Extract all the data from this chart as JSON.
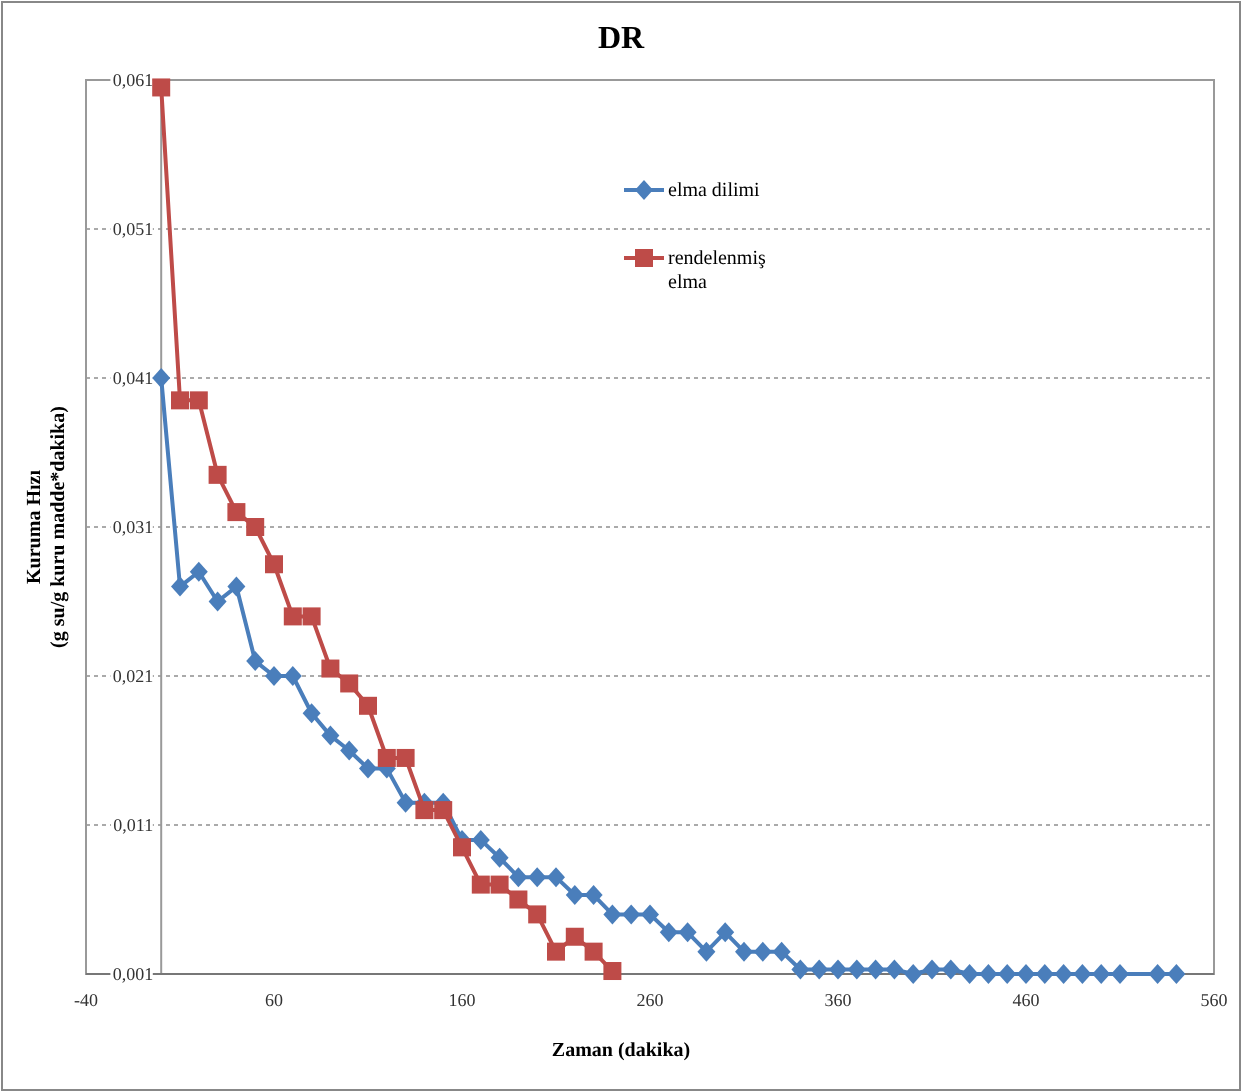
{
  "chart_data": {
    "type": "line",
    "title": "DR",
    "xlabel": "Zaman (dakika)",
    "ylabel": "Kuruma Hızı\n(g su/g kuru madde*dakika)",
    "xlim": [
      -40,
      560
    ],
    "xticks": [
      -40,
      60,
      160,
      260,
      360,
      460,
      560
    ],
    "ylim": [
      0.001,
      0.061
    ],
    "yticks": [
      {
        "value": 0.001,
        "label": "0,001"
      },
      {
        "value": 0.011,
        "label": "0,011"
      },
      {
        "value": 0.021,
        "label": "0,021"
      },
      {
        "value": 0.031,
        "label": "0,031"
      },
      {
        "value": 0.041,
        "label": "0,041"
      },
      {
        "value": 0.051,
        "label": "0,051"
      },
      {
        "value": 0.061,
        "label": "0,061"
      }
    ],
    "grid": "y",
    "legend": "top right",
    "series": [
      {
        "name": "elma dilimi",
        "color": "#4a7ebb",
        "marker": "diamond",
        "x": [
          0,
          10,
          20,
          30,
          40,
          50,
          60,
          70,
          80,
          90,
          100,
          110,
          120,
          130,
          140,
          150,
          160,
          170,
          180,
          190,
          200,
          210,
          220,
          230,
          240,
          250,
          260,
          270,
          280,
          290,
          300,
          310,
          320,
          330,
          340,
          350,
          360,
          370,
          380,
          390,
          400,
          410,
          420,
          430,
          440,
          450,
          460,
          470,
          480,
          490,
          500,
          510,
          530,
          540
        ],
        "values": [
          0.041,
          0.027,
          0.028,
          0.026,
          0.027,
          0.022,
          0.021,
          0.021,
          0.0185,
          0.017,
          0.016,
          0.0148,
          0.0148,
          0.0125,
          0.0125,
          0.0125,
          0.01,
          0.01,
          0.0088,
          0.0075,
          0.0075,
          0.0075,
          0.0063,
          0.0063,
          0.005,
          0.005,
          0.005,
          0.0038,
          0.0038,
          0.0025,
          0.0038,
          0.0025,
          0.0025,
          0.0025,
          0.0013,
          0.0013,
          0.0013,
          0.0013,
          0.0013,
          0.0013,
          0.001,
          0.0013,
          0.0013,
          0.001,
          0.001,
          0.001,
          0.001,
          0.001,
          0.001,
          0.001,
          0.001,
          0.001,
          0.001,
          0.001
        ]
      },
      {
        "name": "rendelenmiş elma",
        "color": "#be4b48",
        "marker": "square",
        "x": [
          0,
          10,
          20,
          30,
          40,
          50,
          60,
          70,
          80,
          90,
          100,
          110,
          120,
          130,
          140,
          150,
          160,
          170,
          180,
          190,
          200,
          210,
          220,
          230,
          240
        ],
        "values": [
          0.0605,
          0.0395,
          0.0395,
          0.0345,
          0.032,
          0.031,
          0.0285,
          0.025,
          0.025,
          0.0215,
          0.0205,
          0.019,
          0.0155,
          0.0155,
          0.012,
          0.012,
          0.0095,
          0.007,
          0.007,
          0.006,
          0.005,
          0.0025,
          0.0035,
          0.0025,
          0.0012
        ]
      }
    ]
  }
}
